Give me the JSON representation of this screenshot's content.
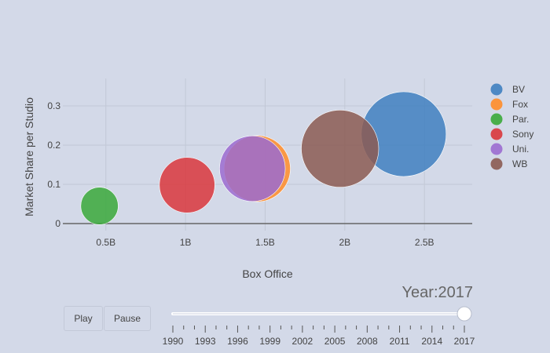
{
  "chart_data": {
    "type": "scatter",
    "xlabel": "Box Office",
    "ylabel": "Market Share per Studio",
    "x_ticks": [
      {
        "value": 0.5,
        "label": "0.5B"
      },
      {
        "value": 1.0,
        "label": "1B"
      },
      {
        "value": 1.5,
        "label": "1.5B"
      },
      {
        "value": 2.0,
        "label": "2B"
      },
      {
        "value": 2.5,
        "label": "2.5B"
      }
    ],
    "y_ticks": [
      {
        "value": 0,
        "label": "0"
      },
      {
        "value": 0.1,
        "label": "0.1"
      },
      {
        "value": 0.2,
        "label": "0.2"
      },
      {
        "value": 0.3,
        "label": "0.3"
      }
    ],
    "xlim": [
      0.23,
      2.8
    ],
    "ylim": [
      -0.018,
      0.37
    ],
    "grid": true,
    "legend_position": "right",
    "series": [
      {
        "name": "BV",
        "color": "#3f7fc0",
        "x": 2.37,
        "y": 0.228,
        "size": 2.37
      },
      {
        "name": "Fox",
        "color": "#ff8c28",
        "x": 1.45,
        "y": 0.14,
        "size": 1.45
      },
      {
        "name": "Par.",
        "color": "#3aa83a",
        "x": 0.46,
        "y": 0.045,
        "size": 0.46
      },
      {
        "name": "Sony",
        "color": "#d9363c",
        "x": 1.01,
        "y": 0.098,
        "size": 1.01
      },
      {
        "name": "Uni.",
        "color": "#9b6bd0",
        "x": 1.42,
        "y": 0.14,
        "size": 1.42
      },
      {
        "name": "WB",
        "color": "#8b5a52",
        "x": 1.97,
        "y": 0.191,
        "size": 1.97
      }
    ]
  },
  "controls": {
    "play_label": "Play",
    "pause_label": "Pause",
    "year_prefix": "Year:",
    "year_value": "2017",
    "slider_labels": [
      "1990",
      "1993",
      "1996",
      "1999",
      "2002",
      "2005",
      "2008",
      "2011",
      "2014",
      "2017"
    ],
    "slider_value": "2017"
  }
}
